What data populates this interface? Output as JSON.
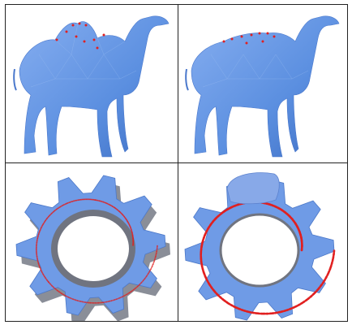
{
  "figure": {
    "panels": [
      {
        "id": "camel-left",
        "subject": "camel-mesh",
        "marker_color": "#e02020",
        "mesh_color": "#5b8fe0"
      },
      {
        "id": "camel-right",
        "subject": "camel-mesh",
        "marker_color": "#e02020",
        "mesh_color": "#5b8fe0"
      },
      {
        "id": "gear-left",
        "subject": "gear-mesh",
        "marker_color": "#e02020",
        "mesh_color": "#6f9be6"
      },
      {
        "id": "gear-right",
        "subject": "gear-mesh",
        "marker_color": "#e02020",
        "mesh_color": "#6f9be6"
      }
    ]
  }
}
